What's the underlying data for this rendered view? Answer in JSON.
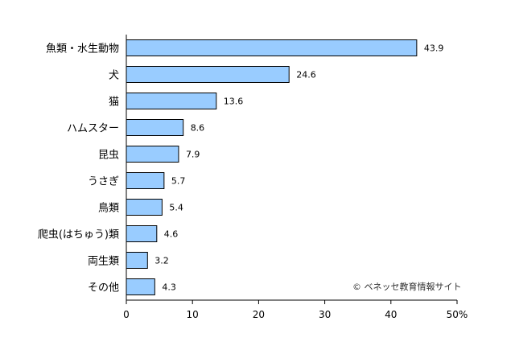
{
  "chart_data": {
    "type": "bar",
    "orientation": "horizontal",
    "title": "",
    "xlabel": "",
    "ylabel": "",
    "categories": [
      "魚類・水生動物",
      "犬",
      "猫",
      "ハムスター",
      "昆虫",
      "うさぎ",
      "鳥類",
      "爬虫(はちゅう)類",
      "両生類",
      "その他"
    ],
    "values": [
      43.9,
      24.6,
      13.6,
      8.6,
      7.9,
      5.7,
      5.4,
      4.6,
      3.2,
      4.3
    ],
    "value_labels": [
      "43.9",
      "24.6",
      "13.6",
      "8.6",
      "7.9",
      "5.7",
      "5.4",
      "4.6",
      "3.2",
      "4.3"
    ],
    "xlim": [
      0,
      50
    ],
    "ticks": [
      "0",
      "10",
      "20",
      "30",
      "40",
      "50%"
    ],
    "tick_values": [
      0,
      10,
      20,
      30,
      40,
      50
    ],
    "grid": false,
    "bar_color": "#99ccff",
    "bar_edge_color": "#000000"
  },
  "watermark": "© ベネッセ教育情報サイト"
}
